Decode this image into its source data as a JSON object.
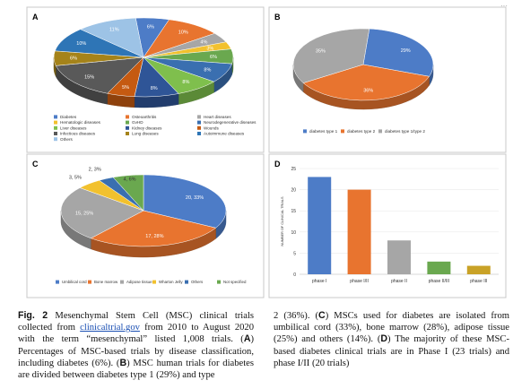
{
  "corner_mark": "···",
  "panels": {
    "A": {
      "letter": "A"
    },
    "B": {
      "letter": "B"
    },
    "C": {
      "letter": "C"
    },
    "D": {
      "letter": "D"
    }
  },
  "chart_data": [
    {
      "id": "A",
      "type": "pie",
      "slices": [
        {
          "label": "Diabetes",
          "value": 6,
          "text": "6%",
          "color": "#4d7cc7"
        },
        {
          "label": "Osteoarthritis",
          "value": 10,
          "text": "10%",
          "color": "#e8742f"
        },
        {
          "label": "Heart diseases",
          "value": 4,
          "text": "4%",
          "color": "#a6a6a6"
        },
        {
          "label": "Hematologic diseases",
          "value": 3,
          "text": "3%",
          "color": "#f2c12e"
        },
        {
          "label": "GvHD",
          "value": 6,
          "text": "6%",
          "color": "#6aa84f"
        },
        {
          "label": "Neurodegenerative diseases",
          "value": 8,
          "text": "8%",
          "color": "#3a6fb0"
        },
        {
          "label": "Liver diseases",
          "value": 8,
          "text": "8%",
          "color": "#7fbf4d"
        },
        {
          "label": "Kidney diseases",
          "value": 8,
          "text": "8%",
          "color": "#2f5597"
        },
        {
          "label": "Wounds",
          "value": 5,
          "text": "5%",
          "color": "#c55a11"
        },
        {
          "label": "Infectious diseases",
          "value": 15,
          "text": "15%",
          "color": "#595959"
        },
        {
          "label": "Lung diseases",
          "value": 6,
          "text": "6%",
          "color": "#a5831a"
        },
        {
          "label": "Autoimmune diseases",
          "value": 10,
          "text": "10%",
          "color": "#2e75b6"
        },
        {
          "label": "Others",
          "value": 11,
          "text": "11%",
          "color": "#9dc3e6"
        }
      ],
      "legend": [
        "Diabetes",
        "Osteoarthritis",
        "Heart diseases",
        "Hematologic diseases",
        "GvHD",
        "Neurodegenerative diseases",
        "Liver diseases",
        "Kidney diseases",
        "Wounds",
        "Infectious diseases",
        "Lung diseases",
        "Autoimmune diseases",
        "Others"
      ]
    },
    {
      "id": "B",
      "type": "pie",
      "slices": [
        {
          "label": "diabetes type 1",
          "value": 29,
          "text": "29%",
          "color": "#4d7cc7"
        },
        {
          "label": "diabetes type 2",
          "value": 36,
          "text": "36%",
          "color": "#e8742f"
        },
        {
          "label": "diabetes type 1/type 2",
          "value": 35,
          "text": "35%",
          "color": "#a6a6a6"
        }
      ],
      "legend": [
        "diabetes type 1",
        "diabetes type 2",
        "diabetes type 1/type 2"
      ]
    },
    {
      "id": "C",
      "type": "pie",
      "slices": [
        {
          "label": "Umbilical cord",
          "value": 33,
          "text": "20, 33%",
          "color": "#4d7cc7"
        },
        {
          "label": "Bone marrow",
          "value": 28,
          "text": "17, 28%",
          "color": "#e8742f"
        },
        {
          "label": "Adipose tissue",
          "value": 25,
          "text": "15, 25%",
          "color": "#a6a6a6"
        },
        {
          "label": "Wharton Jelly",
          "value": 5,
          "text": "3, 5%",
          "color": "#f2c12e"
        },
        {
          "label": "Others",
          "value": 3,
          "text": "2, 3%",
          "color": "#3a6fb0"
        },
        {
          "label": "Not specified",
          "value": 6,
          "text": "4, 6%",
          "color": "#6aa84f"
        }
      ],
      "legend": [
        "Umbilical cord",
        "Bone marrow",
        "Adipose tissue",
        "Wharton Jelly",
        "Others",
        "Not specified"
      ]
    },
    {
      "id": "D",
      "type": "bar",
      "categories": [
        "phase I",
        "phase I/II",
        "phase II",
        "phase II/III",
        "phase III"
      ],
      "values": [
        23,
        20,
        8,
        3,
        2
      ],
      "colors": [
        "#4d7cc7",
        "#e8742f",
        "#a6a6a6",
        "#6aa84f",
        "#c9a227"
      ],
      "ylabel": "NUMBER OF CLINICAL TRIALS",
      "ylim": [
        0,
        25
      ],
      "yticks": [
        0,
        5,
        10,
        15,
        20,
        25
      ]
    }
  ],
  "caption": {
    "fig_label": "Fig. 2",
    "p1": "Mesenchymal Stem Cell (MSC) clinical trials collected from",
    "link": "clinicaltrial.gov",
    "p2": "from 2010 to August 2020 with the term “mesenchymal” listed 1,008 trials. (",
    "A": "A",
    "p3": ") Percentages of MSC-based trials by disease classification, including diabetes (6%). (",
    "B": "B",
    "p4": ") MSC human trials for diabetes are divided between diabetes type 1 (29%) and type 2 (36%). (",
    "C": "C",
    "p5": ") MSCs used for diabetes are isolated from umbilical cord (33%), bone marrow (28%), adipose tissue (25%) and others (14%). (",
    "D": "D",
    "p6": ") The majority of these MSC-based diabetes clinical trials are in Phase I (23 trials) and phase I/II (20 trials)"
  }
}
